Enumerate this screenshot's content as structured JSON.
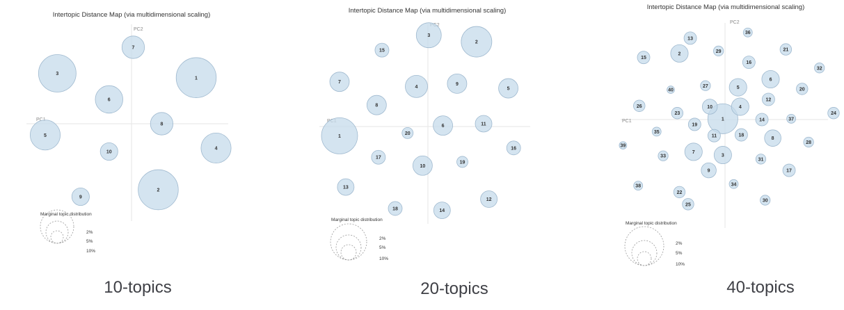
{
  "colors": {
    "bubble_fill": "#c6dbeb",
    "bubble_stroke": "#9fb9cf",
    "axis_line": "#e5e5e5",
    "legend_stroke": "#9a9a9a",
    "text": "#333333",
    "caption": "#3f4046"
  },
  "chart_data": [
    {
      "type": "scatter",
      "title": "Intertopic Distance Map (via multidimensional scaling)",
      "xlabel": "PC1",
      "ylabel": "PC2",
      "caption": "10-topics",
      "legend_title": "Marginal topic distribution",
      "legend_labels": [
        "2%",
        "5%",
        "10%"
      ],
      "topics": [
        {
          "id": "1",
          "x": 0.75,
          "y": 0.53,
          "size": 8.0
        },
        {
          "id": "2",
          "x": 0.31,
          "y": -0.76,
          "size": 8.0
        },
        {
          "id": "3",
          "x": -0.86,
          "y": 0.58,
          "size": 7.5
        },
        {
          "id": "4",
          "x": 0.98,
          "y": -0.28,
          "size": 6.0
        },
        {
          "id": "5",
          "x": -1.0,
          "y": -0.13,
          "size": 6.0
        },
        {
          "id": "6",
          "x": -0.26,
          "y": 0.28,
          "size": 5.5
        },
        {
          "id": "7",
          "x": 0.02,
          "y": 0.88,
          "size": 4.5
        },
        {
          "id": "8",
          "x": 0.35,
          "y": 0.0,
          "size": 4.5
        },
        {
          "id": "9",
          "x": -0.59,
          "y": -0.84,
          "size": 3.5
        },
        {
          "id": "10",
          "x": -0.26,
          "y": -0.32,
          "size": 3.5
        }
      ]
    },
    {
      "type": "scatter",
      "title": "Intertopic Distance Map (via multidimensional scaling)",
      "xlabel": "PC1",
      "ylabel": "PC2",
      "caption": "20-topics",
      "legend_title": "Marginal topic distribution",
      "legend_labels": [
        "2%",
        "5%",
        "10%"
      ],
      "topics": [
        {
          "id": "1",
          "x": -1.0,
          "y": -0.1,
          "size": 6.5
        },
        {
          "id": "2",
          "x": 0.55,
          "y": 0.91,
          "size": 5.5
        },
        {
          "id": "3",
          "x": 0.01,
          "y": 0.98,
          "size": 4.5
        },
        {
          "id": "4",
          "x": -0.13,
          "y": 0.43,
          "size": 4.0
        },
        {
          "id": "5",
          "x": 0.91,
          "y": 0.41,
          "size": 3.5
        },
        {
          "id": "6",
          "x": 0.17,
          "y": 0.01,
          "size": 3.5
        },
        {
          "id": "7",
          "x": -1.0,
          "y": 0.48,
          "size": 3.5
        },
        {
          "id": "8",
          "x": -0.58,
          "y": 0.23,
          "size": 3.5
        },
        {
          "id": "9",
          "x": 0.33,
          "y": 0.46,
          "size": 3.5
        },
        {
          "id": "10",
          "x": -0.06,
          "y": -0.42,
          "size": 3.5
        },
        {
          "id": "11",
          "x": 0.63,
          "y": 0.03,
          "size": 3.0
        },
        {
          "id": "12",
          "x": 0.69,
          "y": -0.78,
          "size": 3.0
        },
        {
          "id": "13",
          "x": -0.93,
          "y": -0.65,
          "size": 3.0
        },
        {
          "id": "14",
          "x": 0.16,
          "y": -0.9,
          "size": 3.0
        },
        {
          "id": "15",
          "x": -0.52,
          "y": 0.82,
          "size": 2.5
        },
        {
          "id": "16",
          "x": 0.97,
          "y": -0.23,
          "size": 2.5
        },
        {
          "id": "17",
          "x": -0.56,
          "y": -0.33,
          "size": 2.5
        },
        {
          "id": "18",
          "x": -0.37,
          "y": -0.88,
          "size": 2.5
        },
        {
          "id": "19",
          "x": 0.39,
          "y": -0.38,
          "size": 2.0
        },
        {
          "id": "20",
          "x": -0.23,
          "y": -0.07,
          "size": 2.0
        }
      ]
    },
    {
      "type": "scatter",
      "title": "Intertopic Distance Map (via multidimensional scaling)",
      "xlabel": "PC1",
      "ylabel": "PC2",
      "caption": "40-topics",
      "legend_title": "Marginal topic distribution",
      "legend_labels": [
        "2%",
        "5%",
        "10%"
      ],
      "topics": [
        {
          "id": "1",
          "x": -0.02,
          "y": 0.01,
          "size": 6.0
        },
        {
          "id": "2",
          "x": -0.42,
          "y": 0.82,
          "size": 3.5
        },
        {
          "id": "3",
          "x": -0.02,
          "y": -0.44,
          "size": 3.5
        },
        {
          "id": "4",
          "x": 0.14,
          "y": 0.16,
          "size": 3.5
        },
        {
          "id": "5",
          "x": 0.12,
          "y": 0.4,
          "size": 3.5
        },
        {
          "id": "6",
          "x": 0.42,
          "y": 0.5,
          "size": 3.5
        },
        {
          "id": "7",
          "x": -0.29,
          "y": -0.4,
          "size": 3.5
        },
        {
          "id": "8",
          "x": 0.44,
          "y": -0.23,
          "size": 3.3
        },
        {
          "id": "9",
          "x": -0.15,
          "y": -0.63,
          "size": 3.0
        },
        {
          "id": "10",
          "x": -0.14,
          "y": 0.16,
          "size": 3.0
        },
        {
          "id": "11",
          "x": -0.1,
          "y": -0.2,
          "size": 2.5
        },
        {
          "id": "12",
          "x": 0.4,
          "y": 0.25,
          "size": 2.5
        },
        {
          "id": "13",
          "x": -0.32,
          "y": 1.01,
          "size": 2.5
        },
        {
          "id": "14",
          "x": 0.34,
          "y": 0.0,
          "size": 2.5
        },
        {
          "id": "15",
          "x": -0.75,
          "y": 0.77,
          "size": 2.5
        },
        {
          "id": "16",
          "x": 0.22,
          "y": 0.71,
          "size": 2.5
        },
        {
          "id": "17",
          "x": 0.59,
          "y": -0.63,
          "size": 2.5
        },
        {
          "id": "18",
          "x": 0.15,
          "y": -0.19,
          "size": 2.5
        },
        {
          "id": "19",
          "x": -0.28,
          "y": -0.06,
          "size": 2.5
        },
        {
          "id": "20",
          "x": 0.71,
          "y": 0.38,
          "size": 2.3
        },
        {
          "id": "21",
          "x": 0.56,
          "y": 0.87,
          "size": 2.3
        },
        {
          "id": "22",
          "x": -0.42,
          "y": -0.9,
          "size": 2.3
        },
        {
          "id": "23",
          "x": -0.44,
          "y": 0.08,
          "size": 2.3
        },
        {
          "id": "24",
          "x": 1.0,
          "y": 0.08,
          "size": 2.3
        },
        {
          "id": "25",
          "x": -0.34,
          "y": -1.05,
          "size": 2.3
        },
        {
          "id": "26",
          "x": -0.79,
          "y": 0.17,
          "size": 2.3
        },
        {
          "id": "27",
          "x": -0.18,
          "y": 0.42,
          "size": 2.0
        },
        {
          "id": "28",
          "x": 0.77,
          "y": -0.28,
          "size": 2.0
        },
        {
          "id": "29",
          "x": -0.06,
          "y": 0.85,
          "size": 2.0
        },
        {
          "id": "30",
          "x": 0.37,
          "y": -1.0,
          "size": 2.0
        },
        {
          "id": "31",
          "x": 0.33,
          "y": -0.49,
          "size": 2.0
        },
        {
          "id": "32",
          "x": 0.87,
          "y": 0.64,
          "size": 2.0
        },
        {
          "id": "33",
          "x": -0.57,
          "y": -0.45,
          "size": 2.0
        },
        {
          "id": "34",
          "x": 0.08,
          "y": -0.8,
          "size": 1.8
        },
        {
          "id": "35",
          "x": -0.63,
          "y": -0.15,
          "size": 1.8
        },
        {
          "id": "36",
          "x": 0.21,
          "y": 1.08,
          "size": 1.8
        },
        {
          "id": "37",
          "x": 0.61,
          "y": 0.01,
          "size": 1.8
        },
        {
          "id": "38",
          "x": -0.8,
          "y": -0.82,
          "size": 1.8
        },
        {
          "id": "39",
          "x": -0.94,
          "y": -0.32,
          "size": 1.5
        },
        {
          "id": "40",
          "x": -0.5,
          "y": 0.37,
          "size": 1.5
        }
      ]
    }
  ]
}
